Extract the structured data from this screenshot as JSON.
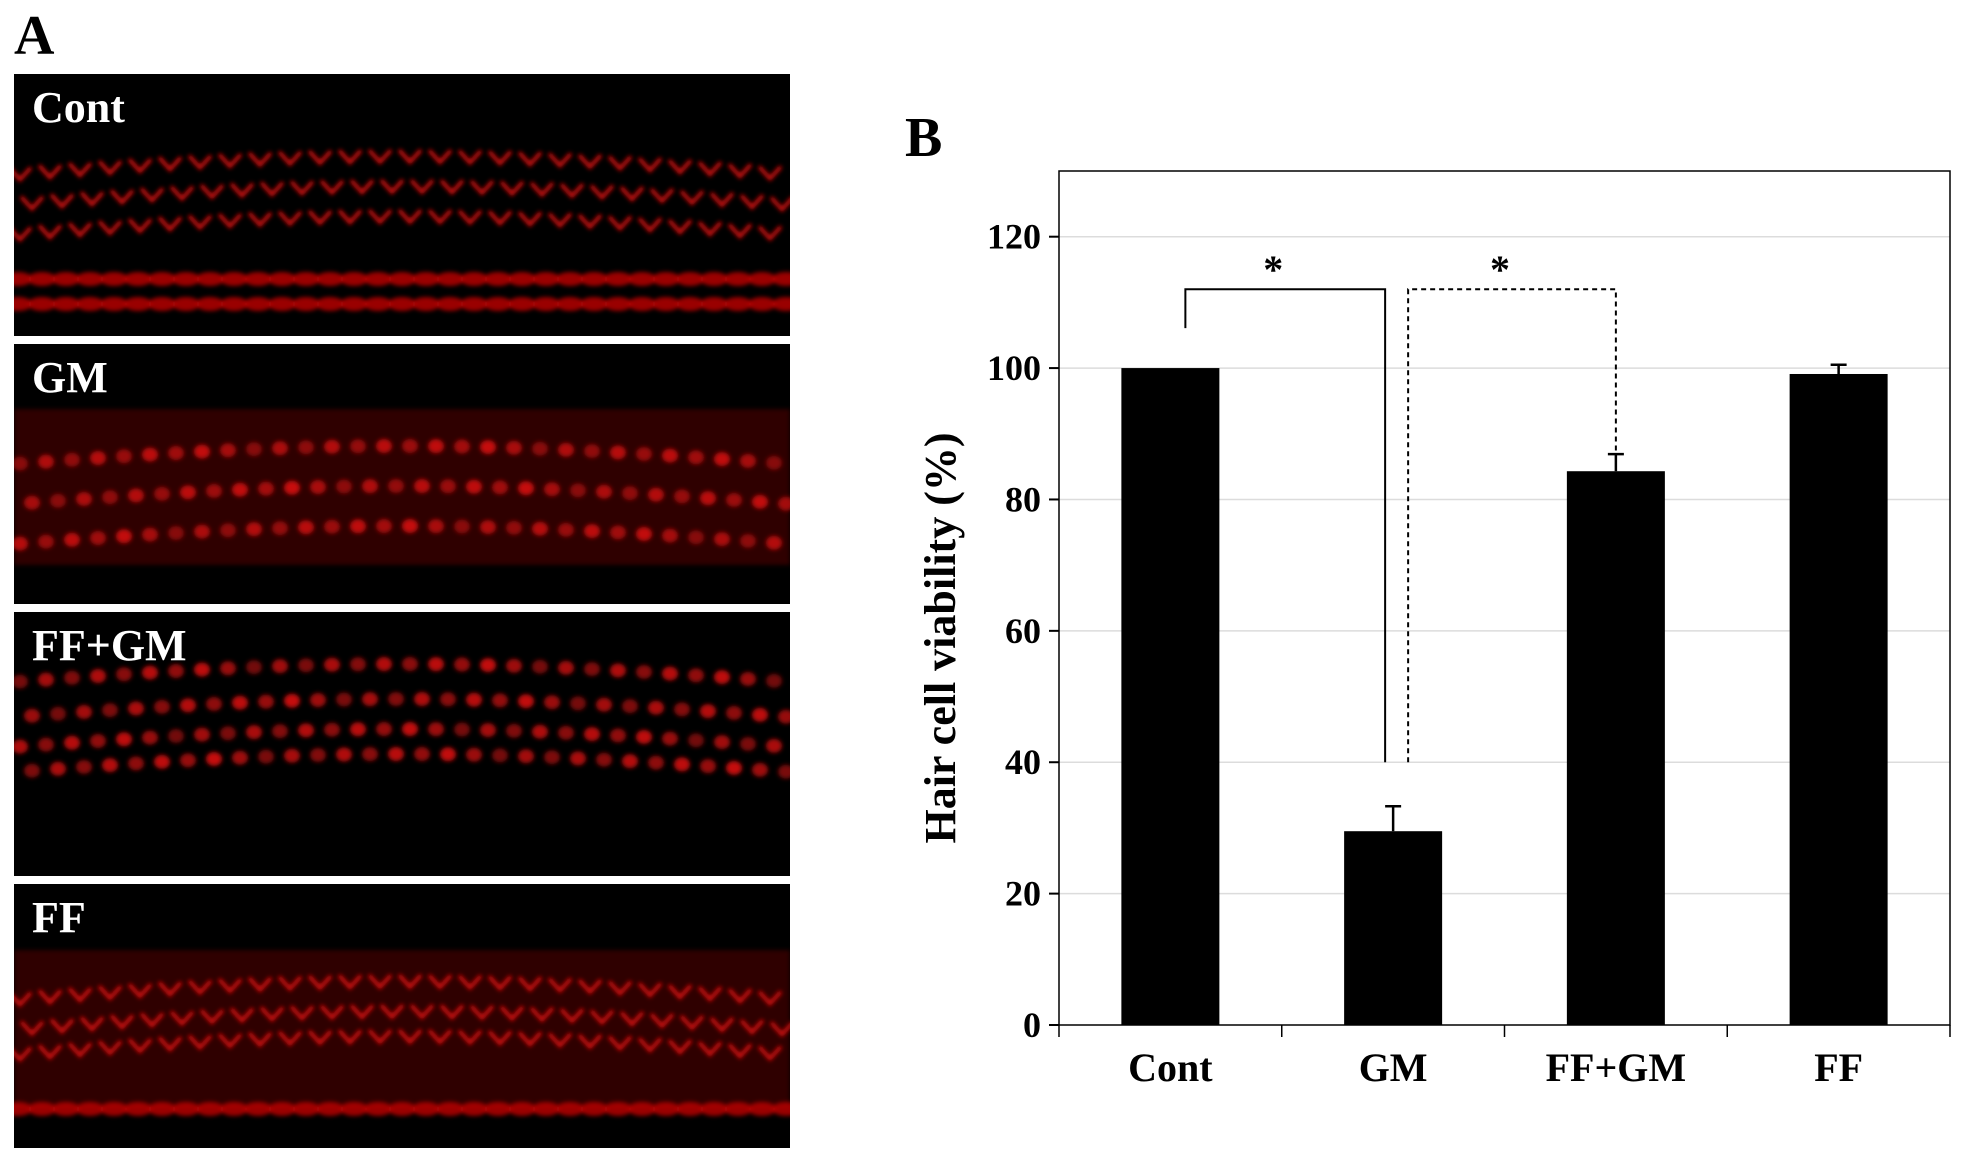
{
  "panel_a": {
    "letter": "A",
    "images": [
      {
        "label": "Cont"
      },
      {
        "label": "GM"
      },
      {
        "label": "FF+GM"
      },
      {
        "label": "FF"
      }
    ]
  },
  "panel_b": {
    "letter": "B"
  },
  "chart_data": {
    "type": "bar",
    "title": "",
    "xlabel": "",
    "ylabel": "Hair cell viability (%)",
    "categories": [
      "Cont",
      "GM",
      "FF+GM",
      "FF"
    ],
    "values": [
      100,
      29.5,
      84.3,
      99.1
    ],
    "errors": [
      0,
      3.8,
      2.6,
      1.4
    ],
    "ylim": [
      0,
      130
    ],
    "yticks": [
      0,
      20,
      40,
      60,
      80,
      100,
      120
    ],
    "grid": true,
    "bar_color": "#000000",
    "significance": [
      {
        "from": "Cont",
        "to": "GM",
        "label": "*",
        "style": "solid",
        "level": 112
      },
      {
        "from": "GM",
        "to": "FF+GM",
        "label": "*",
        "style": "dashed",
        "level": 112
      }
    ]
  }
}
